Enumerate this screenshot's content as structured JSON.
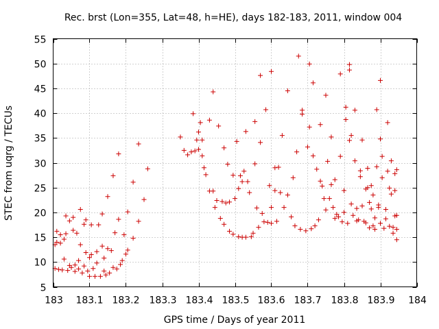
{
  "chart_data": {
    "type": "scatter",
    "title": "Rec. brst (Lon=355, Lat=48, h=HE), days 182-183, 2011, window 004",
    "xlabel": "GPS time / Days of year 2011",
    "ylabel": "STEC from uqrg / TECUs",
    "xlim": [
      183,
      184
    ],
    "ylim": [
      5,
      55
    ],
    "x_ticks": [
      183,
      183.1,
      183.2,
      183.3,
      183.4,
      183.5,
      183.6,
      183.7,
      183.8,
      183.9,
      184
    ],
    "x_tick_labels": [
      "183",
      "183.1",
      "183.2",
      "183.3",
      "183.4",
      "183.5",
      "183.6",
      "183.7",
      "183.8",
      "183.9",
      "184"
    ],
    "y_ticks": [
      5,
      10,
      15,
      20,
      25,
      30,
      35,
      40,
      45,
      50,
      55
    ],
    "y_tick_labels": [
      "5",
      "10",
      "15",
      "20",
      "25",
      "30",
      "35",
      "40",
      "45",
      "50",
      "55"
    ],
    "grid": true,
    "marker": "plus",
    "colors": {
      "points": "#cc0000",
      "grid": "#a0a0a0",
      "frame": "#000000"
    },
    "series": [
      {
        "name": "",
        "points": [
          [
            183.005,
            8.7
          ],
          [
            183.005,
            13.5
          ],
          [
            183.01,
            16.2
          ],
          [
            183.01,
            14.0
          ],
          [
            183.015,
            8.5
          ],
          [
            183.02,
            15.5
          ],
          [
            183.02,
            13.8
          ],
          [
            183.025,
            8.4
          ],
          [
            183.03,
            10.6
          ],
          [
            183.03,
            14.6
          ],
          [
            183.035,
            19.3
          ],
          [
            183.035,
            15.7
          ],
          [
            183.04,
            8.3
          ],
          [
            183.045,
            9.3
          ],
          [
            183.045,
            18.3
          ],
          [
            183.05,
            8.9
          ],
          [
            183.055,
            19.0
          ],
          [
            183.055,
            16.4
          ],
          [
            183.06,
            8.1
          ],
          [
            183.06,
            9.4
          ],
          [
            183.065,
            15.8
          ],
          [
            183.07,
            8.6
          ],
          [
            183.07,
            10.3
          ],
          [
            183.075,
            13.5
          ],
          [
            183.075,
            20.6
          ],
          [
            183.08,
            7.8
          ],
          [
            183.085,
            9.2
          ],
          [
            183.085,
            17.6
          ],
          [
            183.09,
            11.9
          ],
          [
            183.09,
            18.5
          ],
          [
            183.095,
            8.2
          ],
          [
            183.1,
            10.9
          ],
          [
            183.1,
            7.1
          ],
          [
            183.105,
            11.5
          ],
          [
            183.105,
            17.5
          ],
          [
            183.11,
            8.7
          ],
          [
            183.115,
            7.1
          ],
          [
            183.12,
            9.8
          ],
          [
            183.12,
            12.1
          ],
          [
            183.125,
            17.5
          ],
          [
            183.13,
            7.1
          ],
          [
            183.135,
            13.2
          ],
          [
            183.135,
            19.7
          ],
          [
            183.14,
            8.2
          ],
          [
            183.14,
            10.8
          ],
          [
            183.145,
            7.4
          ],
          [
            183.15,
            12.7
          ],
          [
            183.15,
            23.2
          ],
          [
            183.155,
            7.8
          ],
          [
            183.16,
            12.3
          ],
          [
            183.165,
            8.9
          ],
          [
            183.165,
            27.4
          ],
          [
            183.17,
            15.9
          ],
          [
            183.175,
            8.6
          ],
          [
            183.18,
            18.6
          ],
          [
            183.18,
            31.8
          ],
          [
            183.185,
            9.5
          ],
          [
            183.19,
            10.3
          ],
          [
            183.195,
            15.5
          ],
          [
            183.2,
            11.6
          ],
          [
            183.205,
            12.4
          ],
          [
            183.205,
            20.1
          ],
          [
            183.22,
            26.1
          ],
          [
            183.22,
            14.8
          ],
          [
            183.235,
            18.2
          ],
          [
            183.235,
            33.8
          ],
          [
            183.25,
            22.6
          ],
          [
            183.26,
            28.8
          ],
          [
            183.35,
            35.2
          ],
          [
            183.36,
            32.5
          ],
          [
            183.37,
            31.6
          ],
          [
            183.38,
            32.2
          ],
          [
            183.385,
            39.9
          ],
          [
            183.39,
            32.4
          ],
          [
            183.395,
            34.6
          ],
          [
            183.4,
            36.2
          ],
          [
            183.4,
            32.7
          ],
          [
            183.405,
            38.1
          ],
          [
            183.41,
            31.4
          ],
          [
            183.41,
            34.6
          ],
          [
            183.415,
            29.0
          ],
          [
            183.42,
            27.6
          ],
          [
            183.43,
            38.6
          ],
          [
            183.43,
            24.3
          ],
          [
            183.44,
            24.3
          ],
          [
            183.44,
            44.3
          ],
          [
            183.445,
            21.0
          ],
          [
            183.45,
            22.4
          ],
          [
            183.455,
            37.4
          ],
          [
            183.46,
            18.8
          ],
          [
            183.465,
            22.2
          ],
          [
            183.47,
            17.6
          ],
          [
            183.47,
            33.0
          ],
          [
            183.475,
            21.9
          ],
          [
            183.48,
            29.7
          ],
          [
            183.485,
            16.2
          ],
          [
            183.485,
            22.1
          ],
          [
            183.495,
            27.5
          ],
          [
            183.495,
            15.6
          ],
          [
            183.5,
            22.8
          ],
          [
            183.505,
            34.3
          ],
          [
            183.51,
            15.1
          ],
          [
            183.51,
            24.8
          ],
          [
            183.515,
            27.4
          ],
          [
            183.52,
            26.2
          ],
          [
            183.52,
            15.0
          ],
          [
            183.525,
            28.3
          ],
          [
            183.53,
            15.0
          ],
          [
            183.53,
            36.3
          ],
          [
            183.535,
            26.2
          ],
          [
            183.54,
            24.0
          ],
          [
            183.545,
            15.1
          ],
          [
            183.55,
            15.8
          ],
          [
            183.555,
            38.3
          ],
          [
            183.555,
            29.8
          ],
          [
            183.56,
            20.9
          ],
          [
            183.565,
            17.0
          ],
          [
            183.57,
            47.6
          ],
          [
            183.57,
            34.1
          ],
          [
            183.575,
            19.8
          ],
          [
            183.58,
            18.1
          ],
          [
            183.585,
            40.7
          ],
          [
            183.59,
            18.0
          ],
          [
            183.595,
            25.4
          ],
          [
            183.6,
            48.4
          ],
          [
            183.6,
            21.0
          ],
          [
            183.6,
            17.8
          ],
          [
            183.61,
            29.0
          ],
          [
            183.61,
            24.4
          ],
          [
            183.615,
            18.2
          ],
          [
            183.62,
            29.1
          ],
          [
            183.625,
            24.0
          ],
          [
            183.63,
            35.5
          ],
          [
            183.635,
            21.0
          ],
          [
            183.645,
            23.5
          ],
          [
            183.645,
            44.5
          ],
          [
            183.655,
            19.1
          ],
          [
            183.66,
            27.0
          ],
          [
            183.665,
            17.3
          ],
          [
            183.67,
            32.2
          ],
          [
            183.675,
            51.5
          ],
          [
            183.68,
            16.6
          ],
          [
            183.685,
            39.8
          ],
          [
            183.685,
            40.6
          ],
          [
            183.695,
            16.3
          ],
          [
            183.7,
            33.2
          ],
          [
            183.705,
            37.2
          ],
          [
            183.705,
            49.9
          ],
          [
            183.71,
            16.7
          ],
          [
            183.715,
            31.4
          ],
          [
            183.715,
            46.1
          ],
          [
            183.72,
            17.3
          ],
          [
            183.725,
            28.7
          ],
          [
            183.73,
            18.5
          ],
          [
            183.735,
            37.7
          ],
          [
            183.735,
            26.3
          ],
          [
            183.74,
            25.3
          ],
          [
            183.745,
            22.8
          ],
          [
            183.75,
            43.6
          ],
          [
            183.75,
            20.5
          ],
          [
            183.755,
            30.3
          ],
          [
            183.76,
            22.8
          ],
          [
            183.765,
            35.2
          ],
          [
            183.765,
            25.6
          ],
          [
            183.77,
            21.0
          ],
          [
            183.775,
            18.8
          ],
          [
            183.775,
            26.6
          ],
          [
            183.78,
            19.6
          ],
          [
            183.785,
            19.1
          ],
          [
            183.79,
            47.9
          ],
          [
            183.79,
            31.3
          ],
          [
            183.795,
            18.1
          ],
          [
            183.8,
            24.4
          ],
          [
            183.8,
            20.0
          ],
          [
            183.805,
            41.2
          ],
          [
            183.805,
            38.7
          ],
          [
            183.81,
            17.8
          ],
          [
            183.815,
            48.7
          ],
          [
            183.815,
            49.8
          ],
          [
            183.815,
            34.5
          ],
          [
            183.82,
            35.5
          ],
          [
            183.82,
            21.7
          ],
          [
            183.825,
            19.4
          ],
          [
            183.83,
            40.6
          ],
          [
            183.83,
            30.4
          ],
          [
            183.835,
            18.3
          ],
          [
            183.835,
            20.8
          ],
          [
            183.84,
            18.5
          ],
          [
            183.845,
            27.2
          ],
          [
            183.845,
            28.4
          ],
          [
            183.85,
            34.6
          ],
          [
            183.85,
            21.3
          ],
          [
            183.855,
            18.2
          ],
          [
            183.86,
            24.7
          ],
          [
            183.86,
            17.9
          ],
          [
            183.865,
            28.9
          ],
          [
            183.865,
            25.0
          ],
          [
            183.87,
            22.0
          ],
          [
            183.87,
            16.9
          ],
          [
            183.875,
            25.4
          ],
          [
            183.875,
            20.7
          ],
          [
            183.88,
            23.5
          ],
          [
            183.88,
            17.3
          ],
          [
            183.885,
            16.6
          ],
          [
            183.885,
            18.9
          ],
          [
            183.89,
            40.7
          ],
          [
            183.89,
            29.2
          ],
          [
            183.895,
            21.0
          ],
          [
            183.895,
            21.5
          ],
          [
            183.9,
            46.6
          ],
          [
            183.9,
            34.8
          ],
          [
            183.9,
            17.8
          ],
          [
            183.905,
            31.3
          ],
          [
            183.905,
            27.0
          ],
          [
            183.91,
            16.8
          ],
          [
            183.915,
            20.6
          ],
          [
            183.915,
            18.7
          ],
          [
            183.92,
            38.1
          ],
          [
            183.92,
            28.3
          ],
          [
            183.925,
            24.9
          ],
          [
            183.925,
            17.2
          ],
          [
            183.93,
            30.4
          ],
          [
            183.93,
            23.7
          ],
          [
            183.935,
            17.0
          ],
          [
            183.935,
            15.8
          ],
          [
            183.94,
            27.8
          ],
          [
            183.94,
            24.4
          ],
          [
            183.94,
            19.3
          ],
          [
            183.945,
            28.6
          ],
          [
            183.945,
            19.4
          ],
          [
            183.945,
            16.6
          ],
          [
            183.945,
            14.5
          ]
        ]
      }
    ]
  }
}
